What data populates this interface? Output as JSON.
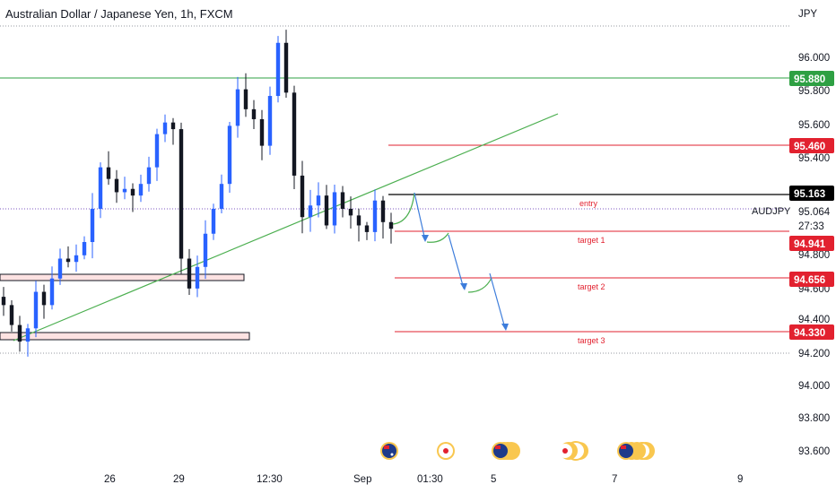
{
  "header": {
    "title": "Australian Dollar / Japanese Yen, 1h, FXCM"
  },
  "axis": {
    "currency": "JPY",
    "y_ticks": [
      "96.000",
      "95.800",
      "95.600",
      "95.400",
      "95.064",
      "94.800",
      "94.600",
      "94.400",
      "94.200",
      "94.000",
      "93.800",
      "93.600"
    ],
    "x_ticks": [
      "26",
      "29",
      "12:30",
      "Sep",
      "01:30",
      "5",
      "7",
      "9"
    ]
  },
  "price_tags": [
    {
      "value": "95.880",
      "color": "#2ea043"
    },
    {
      "value": "95.460",
      "color": "#e2212f"
    },
    {
      "value": "95.163",
      "color": "#000000"
    },
    {
      "value": "94.941",
      "color": "#e2212f"
    },
    {
      "value": "94.656",
      "color": "#e2212f"
    },
    {
      "value": "94.330",
      "color": "#e2212f"
    }
  ],
  "symbol": {
    "name": "AUDJPY",
    "current_price": "95.064",
    "countdown": "27:33"
  },
  "annotations": {
    "entry": "entry",
    "target1": "target 1",
    "target2": "target 2",
    "target3": "target 3"
  },
  "colors": {
    "up": "#2962ff",
    "down": "#131722",
    "resistance": "#2ea043",
    "target": "#e2212f",
    "trendline": "#4caf50",
    "arrow": "#3d7ddb"
  },
  "chart_data": {
    "type": "line",
    "title": "Australian Dollar / Japanese Yen, 1h, FXCM",
    "ylim": [
      93.55,
      96.25
    ],
    "series": [
      {
        "name": "AUDJPY",
        "values": [
          94.52,
          94.4,
          94.3,
          94.38,
          94.6,
          94.52,
          94.68,
          94.8,
          94.78,
          94.82,
          94.9,
          95.1,
          95.35,
          95.28,
          95.2,
          95.22,
          95.18,
          95.25,
          95.35,
          95.55,
          95.62,
          95.58,
          94.8,
          94.62,
          94.75,
          94.95,
          95.1,
          95.25,
          95.6,
          95.82,
          95.7,
          95.64,
          95.48,
          95.78,
          96.1,
          95.8,
          95.3,
          95.05,
          95.12,
          95.18,
          95.0,
          95.2,
          95.1,
          95.06,
          95.0,
          94.96,
          95.15,
          95.02,
          94.98
        ]
      }
    ],
    "levels": [
      95.88,
      95.46,
      95.163,
      94.941,
      94.656,
      94.33
    ]
  }
}
